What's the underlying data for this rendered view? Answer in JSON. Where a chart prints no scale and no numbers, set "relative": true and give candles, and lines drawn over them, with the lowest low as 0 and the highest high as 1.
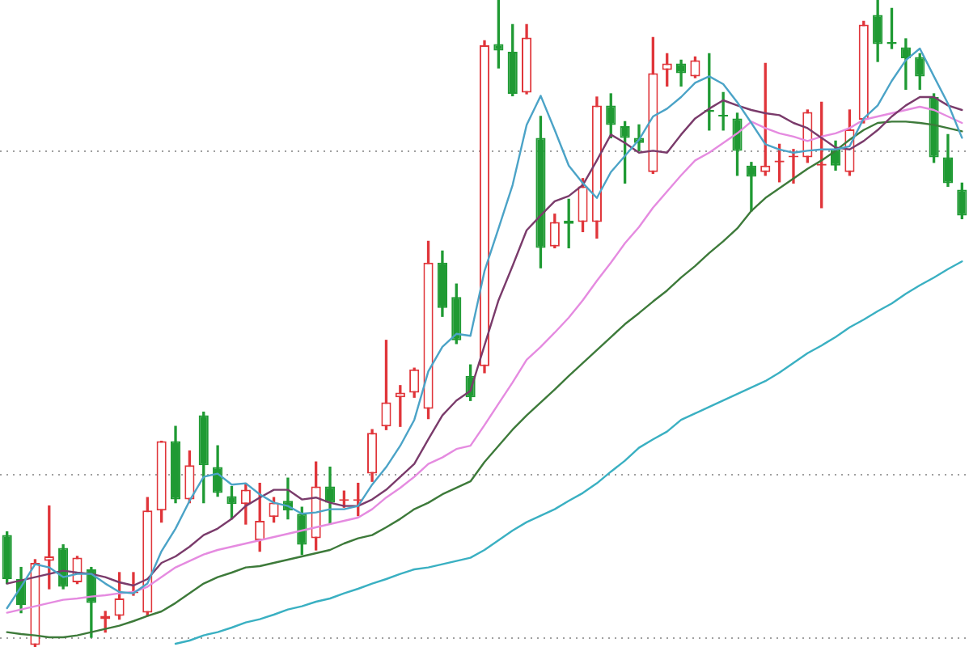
{
  "chart_data": {
    "type": "candlestick",
    "relative": true,
    "categories": [
      null,
      null,
      null,
      null,
      null,
      null,
      null,
      null,
      null,
      null,
      null,
      null,
      null,
      null,
      null,
      null,
      null,
      null,
      null,
      null,
      null,
      null,
      null,
      null,
      null,
      null,
      null,
      null,
      null,
      null,
      null,
      null,
      null,
      null,
      null,
      null,
      null,
      null,
      null,
      null,
      null,
      null,
      null,
      null,
      null,
      null,
      null,
      null,
      null,
      null,
      null,
      null,
      null,
      null,
      null,
      null,
      null,
      null,
      null,
      null,
      null,
      null,
      null,
      null,
      null,
      null,
      null,
      null,
      null
    ],
    "ohlc": [
      [
        0.173,
        0.178,
        0.098,
        0.105
      ],
      [
        0.105,
        0.123,
        0.053,
        0.065
      ],
      [
        0.003,
        0.135,
        0,
        0.13
      ],
      [
        0.133,
        0.218,
        0.09,
        0.14
      ],
      [
        0.153,
        0.158,
        0.09,
        0.093
      ],
      [
        0.1,
        0.14,
        0.098,
        0.138
      ],
      [
        0.12,
        0.123,
        0.015,
        0.068
      ],
      [
        0.043,
        0.055,
        0.023,
        0.048
      ],
      [
        0.048,
        0.115,
        0.043,
        0.075
      ],
      [
        0.083,
        0.115,
        0.08,
        0.085
      ],
      [
        0.053,
        0.231,
        0.048,
        0.211
      ],
      [
        0.211,
        0.318,
        0.193,
        0.318
      ],
      [
        0.318,
        0.341,
        0.223,
        0.228
      ],
      [
        0.228,
        0.303,
        0.223,
        0.281
      ],
      [
        0.358,
        0.363,
        0.223,
        0.281
      ],
      [
        0.278,
        0.311,
        0.233,
        0.238
      ],
      [
        0.233,
        0.248,
        0.198,
        0.221
      ],
      [
        0.221,
        0.253,
        0.19,
        0.243
      ],
      [
        0.165,
        0.253,
        0.148,
        0.195
      ],
      [
        0.201,
        0.231,
        0.193,
        0.223
      ],
      [
        0.226,
        0.261,
        0.198,
        0.211
      ],
      [
        0.206,
        0.216,
        0.143,
        0.158
      ],
      [
        0.168,
        0.286,
        0.15,
        0.248
      ],
      [
        0.248,
        0.278,
        0.19,
        0.223
      ],
      [
        0.226,
        0.241,
        0.216,
        0.228
      ],
      [
        0.226,
        0.253,
        0.203,
        0.228
      ],
      [
        0.268,
        0.336,
        0.256,
        0.331
      ],
      [
        0.341,
        0.474,
        0.336,
        0.378
      ],
      [
        0.386,
        0.404,
        0.341,
        0.393
      ],
      [
        0.393,
        0.431,
        0.386,
        0.429
      ],
      [
        0.368,
        0.627,
        0.353,
        0.594
      ],
      [
        0.594,
        0.612,
        0.511,
        0.524
      ],
      [
        0.541,
        0.561,
        0.469,
        0.474
      ],
      [
        0.419,
        0.436,
        0.381,
        0.386
      ],
      [
        0.434,
        0.937,
        0.424,
        0.93
      ],
      [
        0.932,
        1,
        0.895,
        0.922
      ],
      [
        0.92,
        0.962,
        0.852,
        0.855
      ],
      [
        0.857,
        0.962,
        0.855,
        0.942
      ],
      [
        0.787,
        0.82,
        0.586,
        0.617
      ],
      [
        0.619,
        0.669,
        0.617,
        0.657
      ],
      [
        0.659,
        0.692,
        0.617,
        0.654
      ],
      [
        0.657,
        0.724,
        0.642,
        0.712
      ],
      [
        0.657,
        0.85,
        0.632,
        0.837
      ],
      [
        0.837,
        0.855,
        0.787,
        0.807
      ],
      [
        0.805,
        0.812,
        0.717,
        0.787
      ],
      [
        0.787,
        0.807,
        0.767,
        0.779
      ],
      [
        0.734,
        0.942,
        0.732,
        0.887
      ],
      [
        0.892,
        0.917,
        0.867,
        0.902
      ],
      [
        0.902,
        0.907,
        0.867,
        0.887
      ],
      [
        0.882,
        0.912,
        0.88,
        0.907
      ],
      [
        0.83,
        0.917,
        0.799,
        0.827
      ],
      [
        0.822,
        0.857,
        0.799,
        0.82
      ],
      [
        0.817,
        0.825,
        0.729,
        0.767
      ],
      [
        0.744,
        0.749,
        0.674,
        0.727
      ],
      [
        0.734,
        0.902,
        0.729,
        0.744
      ],
      [
        0.749,
        0.777,
        0.719,
        0.752
      ],
      [
        0.757,
        0.769,
        0.717,
        0.759
      ],
      [
        0.757,
        0.83,
        0.749,
        0.827
      ],
      [
        0.744,
        0.842,
        0.679,
        0.747
      ],
      [
        0.769,
        0.782,
        0.737,
        0.744
      ],
      [
        0.734,
        0.83,
        0.729,
        0.8
      ],
      [
        0.815,
        0.967,
        0.81,
        0.962
      ],
      [
        0.977,
        1,
        0.905,
        0.932
      ],
      [
        0.935,
        0.987,
        0.925,
        0.932
      ],
      [
        0.927,
        0.94,
        0.862,
        0.91
      ],
      [
        0.912,
        0.917,
        0.862,
        0.882
      ],
      [
        0.85,
        0.855,
        0.749,
        0.757
      ],
      [
        0.757,
        0.792,
        0.712,
        0.717
      ],
      [
        0.707,
        0.717,
        0.662,
        0.667
      ]
    ],
    "colors": [
      "#1f9a33",
      "#1f9a33",
      "#e0353a",
      "#e0353a",
      "#1f9a33",
      "#e0353a",
      "#1f9a33",
      "#e0353a",
      "#e0353a",
      "#e0353a",
      "#e0353a",
      "#e0353a",
      "#1f9a33",
      "#e0353a",
      "#1f9a33",
      "#1f9a33",
      "#1f9a33",
      "#e0353a",
      "#e0353a",
      "#e0353a",
      "#1f9a33",
      "#1f9a33",
      "#e0353a",
      "#1f9a33",
      "#e0353a",
      "#e0353a",
      "#e0353a",
      "#e0353a",
      "#e0353a",
      "#e0353a",
      "#e0353a",
      "#1f9a33",
      "#1f9a33",
      "#1f9a33",
      "#e0353a",
      "#1f9a33",
      "#1f9a33",
      "#e0353a",
      "#1f9a33",
      "#e0353a",
      "#1f9a33",
      "#e0353a",
      "#e0353a",
      "#1f9a33",
      "#1f9a33",
      "#1f9a33",
      "#e0353a",
      "#e0353a",
      "#1f9a33",
      "#e0353a",
      "#1f9a33",
      "#1f9a33",
      "#1f9a33",
      "#1f9a33",
      "#e0353a",
      "#e0353a",
      "#e0353a",
      "#e0353a",
      "#e0353a",
      "#1f9a33",
      "#e0353a",
      "#e0353a",
      "#1f9a33",
      "#1f9a33",
      "#1f9a33",
      "#1f9a33",
      "#1f9a33",
      "#1f9a33",
      "#1f9a33"
    ],
    "series": [
      {
        "type": "line",
        "color": "#4ba3c7",
        "values": [
          0.06,
          0.093,
          0.128,
          0.123,
          0.108,
          0.113,
          0.113,
          0.098,
          0.085,
          0.083,
          0.098,
          0.148,
          0.183,
          0.226,
          0.263,
          0.268,
          0.251,
          0.253,
          0.236,
          0.223,
          0.218,
          0.206,
          0.208,
          0.213,
          0.213,
          0.218,
          0.251,
          0.278,
          0.311,
          0.351,
          0.426,
          0.464,
          0.484,
          0.481,
          0.581,
          0.647,
          0.714,
          0.807,
          0.852,
          0.799,
          0.744,
          0.717,
          0.694,
          0.734,
          0.759,
          0.784,
          0.82,
          0.832,
          0.85,
          0.872,
          0.882,
          0.87,
          0.842,
          0.81,
          0.777,
          0.769,
          0.764,
          0.767,
          0.769,
          0.769,
          0.774,
          0.817,
          0.837,
          0.875,
          0.907,
          0.925,
          0.882,
          0.84,
          0.787
        ]
      },
      {
        "type": "line",
        "color": "#7a3b6b",
        "values": [
          0.098,
          0.103,
          0.108,
          0.113,
          0.118,
          0.115,
          0.113,
          0.108,
          0.1,
          0.095,
          0.105,
          0.13,
          0.14,
          0.155,
          0.173,
          0.183,
          0.198,
          0.218,
          0.231,
          0.243,
          0.243,
          0.228,
          0.231,
          0.223,
          0.218,
          0.218,
          0.228,
          0.243,
          0.263,
          0.283,
          0.321,
          0.358,
          0.381,
          0.396,
          0.466,
          0.536,
          0.589,
          0.644,
          0.667,
          0.689,
          0.697,
          0.714,
          0.752,
          0.792,
          0.779,
          0.764,
          0.767,
          0.764,
          0.792,
          0.817,
          0.832,
          0.845,
          0.837,
          0.83,
          0.825,
          0.822,
          0.81,
          0.802,
          0.787,
          0.772,
          0.769,
          0.782,
          0.799,
          0.82,
          0.837,
          0.85,
          0.85,
          0.837,
          0.83
        ]
      },
      {
        "type": "line",
        "color": "#e58be0",
        "values": [
          0.053,
          0.058,
          0.063,
          0.068,
          0.073,
          0.075,
          0.078,
          0.08,
          0.083,
          0.085,
          0.093,
          0.108,
          0.123,
          0.133,
          0.143,
          0.15,
          0.155,
          0.16,
          0.165,
          0.17,
          0.175,
          0.18,
          0.185,
          0.19,
          0.195,
          0.2,
          0.213,
          0.231,
          0.246,
          0.263,
          0.283,
          0.293,
          0.306,
          0.311,
          0.343,
          0.376,
          0.409,
          0.444,
          0.464,
          0.486,
          0.509,
          0.536,
          0.566,
          0.594,
          0.624,
          0.649,
          0.679,
          0.704,
          0.729,
          0.752,
          0.764,
          0.779,
          0.794,
          0.812,
          0.802,
          0.794,
          0.789,
          0.782,
          0.789,
          0.794,
          0.802,
          0.815,
          0.82,
          0.825,
          0.83,
          0.835,
          0.83,
          0.82,
          0.81
        ]
      },
      {
        "type": "line",
        "color": "#3d7a3a",
        "values": [
          0.023,
          0.02,
          0.018,
          0.015,
          0.015,
          0.018,
          0.023,
          0.028,
          0.033,
          0.04,
          0.048,
          0.055,
          0.068,
          0.083,
          0.098,
          0.108,
          0.115,
          0.123,
          0.125,
          0.13,
          0.135,
          0.14,
          0.145,
          0.15,
          0.16,
          0.168,
          0.173,
          0.185,
          0.198,
          0.213,
          0.223,
          0.236,
          0.246,
          0.256,
          0.286,
          0.311,
          0.336,
          0.358,
          0.378,
          0.398,
          0.419,
          0.439,
          0.459,
          0.479,
          0.499,
          0.516,
          0.534,
          0.551,
          0.571,
          0.589,
          0.609,
          0.627,
          0.647,
          0.674,
          0.694,
          0.709,
          0.724,
          0.739,
          0.752,
          0.767,
          0.784,
          0.799,
          0.81,
          0.812,
          0.812,
          0.81,
          0.807,
          0.802,
          0.797
        ]
      },
      {
        "type": "line",
        "color": "#3ab0c2",
        "values": [
          null,
          null,
          null,
          null,
          null,
          null,
          null,
          null,
          null,
          null,
          null,
          null,
          0.005,
          0.01,
          0.018,
          0.023,
          0.03,
          0.038,
          0.043,
          0.05,
          0.058,
          0.063,
          0.07,
          0.075,
          0.083,
          0.09,
          0.098,
          0.105,
          0.113,
          0.12,
          0.123,
          0.128,
          0.133,
          0.138,
          0.15,
          0.165,
          0.18,
          0.193,
          0.203,
          0.213,
          0.226,
          0.238,
          0.253,
          0.271,
          0.288,
          0.308,
          0.321,
          0.333,
          0.351,
          0.361,
          0.371,
          0.381,
          0.391,
          0.401,
          0.411,
          0.424,
          0.439,
          0.454,
          0.466,
          0.479,
          0.494,
          0.506,
          0.519,
          0.531,
          0.546,
          0.559,
          0.571,
          0.584,
          0.596
        ]
      }
    ],
    "ref_lines": [
      {
        "axis": "y",
        "value": 0.768,
        "color": "#a0a0a0",
        "line_style": "dotted"
      },
      {
        "axis": "y",
        "value": 0.267,
        "color": "#a0a0a0",
        "line_style": "dotted"
      },
      {
        "axis": "y",
        "value": 0.016,
        "color": "#a0a0a0",
        "line_style": "dotted"
      }
    ]
  }
}
